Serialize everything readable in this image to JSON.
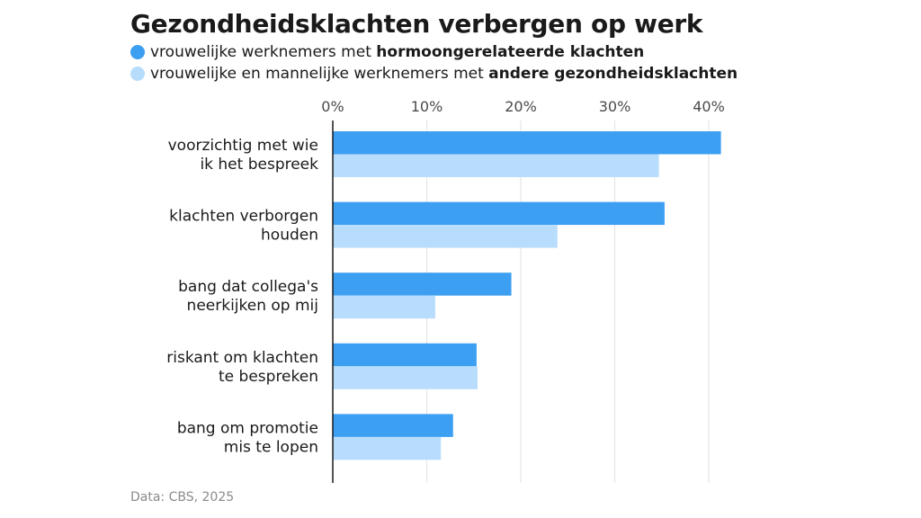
{
  "title": "Gezondheidsklachten verbergen op werk",
  "legend": [
    {
      "prefix": "vrouwelijke werknemers met ",
      "bold": "hormoongerelateerde klachten",
      "color": "#3d9ff2"
    },
    {
      "prefix": "vrouwelijke en mannelijke werknemers met ",
      "bold": "andere gezondheidsklachten",
      "color": "#b8ddfc"
    }
  ],
  "source": "Data: CBS, 2025",
  "chart_data": {
    "type": "bar",
    "orientation": "horizontal",
    "title": "Gezondheidsklachten verbergen op werk",
    "categories": [
      [
        "voorzichtig met wie",
        "ik het bespreek"
      ],
      [
        "klachten verborgen",
        "houden"
      ],
      [
        "bang dat collega's",
        "neerkijken op mij"
      ],
      [
        "riskant om klachten",
        "te bespreken"
      ],
      [
        "bang om promotie",
        "mis te lopen"
      ]
    ],
    "series": [
      {
        "name": "vrouwelijke werknemers met hormoongerelateerde klachten",
        "color": "#3d9ff2",
        "values": [
          41.3,
          35.3,
          19.0,
          15.3,
          12.8
        ]
      },
      {
        "name": "vrouwelijke en mannelijke werknemers met andere gezondheidsklachten",
        "color": "#b8ddfc",
        "values": [
          34.7,
          23.9,
          10.9,
          15.4,
          11.5
        ]
      }
    ],
    "xlim": [
      0,
      42
    ],
    "xticks": [
      0,
      10,
      20,
      30,
      40
    ],
    "xtick_labels": [
      "0%",
      "10%",
      "20%",
      "30%",
      "40%"
    ],
    "grid": true,
    "legend_position": "top-left"
  }
}
